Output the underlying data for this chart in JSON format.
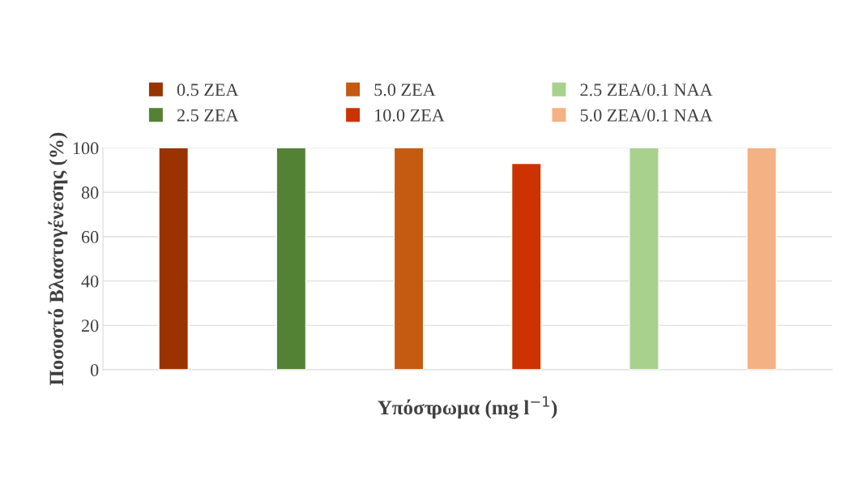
{
  "chart_data": {
    "type": "bar",
    "xlabel": "Υπόστρωμα (mg l$^{−1}$)",
    "ylabel": "Ποσοστό Βλαστογένεσης (%)",
    "categories": [
      null,
      null,
      null,
      null,
      null,
      null
    ],
    "series": [
      {
        "name": "0.5 ZEA",
        "color": "#993300",
        "values": [
          100,
          null,
          null,
          null,
          null,
          null
        ]
      },
      {
        "name": "2.5 ZEA",
        "color": "#548235",
        "values": [
          null,
          100,
          null,
          null,
          null,
          null
        ]
      },
      {
        "name": "5.0 ZEA",
        "color": "#c55a11",
        "values": [
          null,
          null,
          100,
          null,
          null,
          null
        ]
      },
      {
        "name": "10.0 ZEA",
        "color": "#cc3300",
        "values": [
          null,
          null,
          null,
          93,
          null,
          null
        ]
      },
      {
        "name": "2.5 ZEA/0.1 NAA",
        "color": "#a9d18e",
        "values": [
          null,
          null,
          null,
          null,
          100,
          null
        ]
      },
      {
        "name": "5.0 ZEA/0.1 NAA",
        "color": "#f4b183",
        "values": [
          null,
          null,
          null,
          null,
          null,
          100
        ]
      }
    ],
    "ylim": [
      0,
      100
    ],
    "yticks": [
      0,
      20,
      40,
      60,
      80,
      100
    ],
    "grid": "y",
    "legend": "top"
  }
}
